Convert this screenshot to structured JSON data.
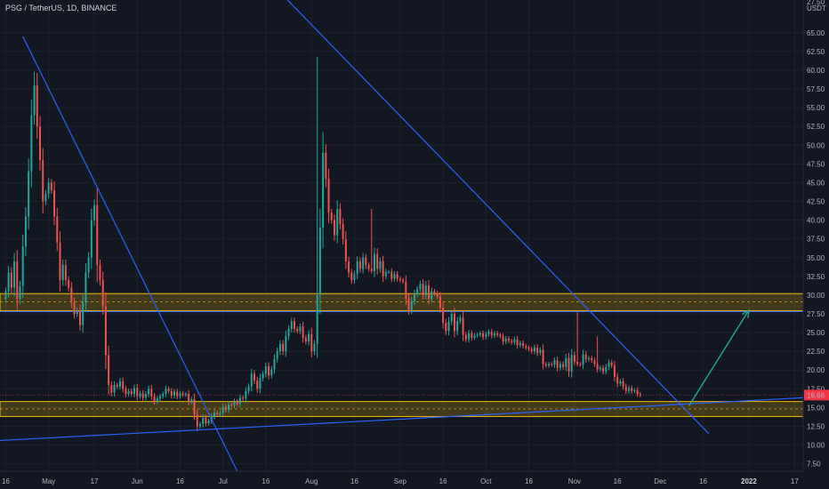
{
  "header": {
    "symbol_title": "PSG / TetherUS, 1D, BINANCE"
  },
  "axis": {
    "currency_line1": "27.50",
    "currency_line2": "USDT"
  },
  "price_tag": {
    "value": "16.66",
    "color": "#f23645"
  },
  "colors": {
    "background": "#131722",
    "up": "#26a69a",
    "down": "#ef5350",
    "zone": "#f0b90b",
    "trendline": "#2962ff",
    "arrow": "#26a69a"
  },
  "chart_data": {
    "type": "candlestick",
    "y_ticks": [
      65,
      62.5,
      60,
      57.5,
      55,
      52.5,
      50,
      47.5,
      45,
      42.5,
      40,
      37.5,
      35,
      32.5,
      30,
      27.5,
      25,
      22.5,
      20,
      17.5,
      15,
      12.5,
      10,
      7.5
    ],
    "y_tick_labels": [
      "65.00",
      "62.50",
      "60.00",
      "57.50",
      "55.00",
      "52.50",
      "50.00",
      "47.50",
      "45.00",
      "42.50",
      "40.00",
      "37.50",
      "35.00",
      "32.50",
      "30.00",
      "27.50",
      "25.00",
      "22.50",
      "20.00",
      "17.50",
      "15.00",
      "12.50",
      "10.00",
      "7.50"
    ],
    "ylim": [
      6.5,
      67
    ],
    "x_ticks": [
      {
        "label": "16",
        "day": 0
      },
      {
        "label": "May",
        "day": 15
      },
      {
        "label": "17",
        "day": 31
      },
      {
        "label": "Jun",
        "day": 46
      },
      {
        "label": "16",
        "day": 61
      },
      {
        "label": "Jul",
        "day": 76
      },
      {
        "label": "16",
        "day": 91
      },
      {
        "label": "Aug",
        "day": 107
      },
      {
        "label": "16",
        "day": 122
      },
      {
        "label": "Sep",
        "day": 138
      },
      {
        "label": "16",
        "day": 153
      },
      {
        "label": "Oct",
        "day": 168
      },
      {
        "label": "16",
        "day": 183
      },
      {
        "label": "Nov",
        "day": 199
      },
      {
        "label": "16",
        "day": 214
      },
      {
        "label": "Dec",
        "day": 229
      },
      {
        "label": "16",
        "day": 244
      },
      {
        "label": "2022",
        "day": 260
      },
      {
        "label": "17",
        "day": 276
      }
    ],
    "xlim_days": [
      -2,
      279
    ],
    "zones": [
      {
        "top": 30.2,
        "bottom": 27.9,
        "mid": 29.1
      },
      {
        "top": 15.8,
        "bottom": 13.8,
        "mid": 14.8
      }
    ],
    "hline": 27.8,
    "current_price": 16.66,
    "trendlines": [
      {
        "d1": 6,
        "p1": 64.5,
        "d2": 81,
        "p2": 6.5
      },
      {
        "d1": 97,
        "p1": 70,
        "d2": 246,
        "p2": 11.5
      },
      {
        "d1": -2,
        "p1": 10.6,
        "d2": 279,
        "p2": 16.3
      }
    ],
    "projection_arrow": {
      "d1": 239,
      "p1": 15.2,
      "d2": 260,
      "p2": 28.0
    },
    "candles_close": [
      30.5,
      33,
      31,
      34.5,
      29.5,
      31.2,
      36.5,
      40.5,
      46.5,
      54,
      58,
      52.5,
      48,
      42.5,
      43.5,
      45,
      44,
      40.5,
      37,
      32,
      34,
      32,
      31,
      29,
      27.5,
      28,
      26,
      29,
      33,
      35,
      40,
      42,
      34,
      32,
      28.5,
      22,
      18,
      17,
      18,
      17.8,
      18.5,
      17.5,
      16.8,
      17.2,
      16.8,
      17.6,
      16.5,
      16.9,
      16.3,
      16.8,
      17.5,
      16.5,
      15.8,
      16.2,
      16.5,
      16.8,
      17.5,
      17.2,
      16.6,
      17.1,
      16.5,
      16.9,
      16.7,
      16.8,
      15.8,
      16.1,
      14.1,
      12.5,
      12.8,
      13.6,
      12.9,
      13.2,
      13.8,
      14.3,
      14.1,
      14.3,
      15.1,
      14.7,
      15.4,
      15.3,
      15.8,
      15.5,
      16.3,
      16.2,
      17.2,
      17.8,
      19.5,
      18.6,
      17.5,
      18.9,
      19.5,
      20.5,
      19.3,
      20.1,
      21.5,
      22.5,
      23.5,
      22.5,
      24.5,
      25.5,
      26.5,
      25.5,
      25.2,
      25.8,
      24.3,
      23.8,
      24.8,
      22.5,
      23.5,
      30,
      39,
      49,
      45.5,
      41,
      40,
      38,
      41.5,
      39.5,
      37.5,
      34.5,
      33,
      32,
      32.8,
      34.5,
      33.5,
      35,
      34,
      33.5,
      33.2,
      35.5,
      33.5,
      34.5,
      32.5,
      33.1,
      33.1,
      32.2,
      32.8,
      32.2,
      32,
      31.8,
      29.5,
      28,
      29.2,
      30.2,
      30.8,
      31.5,
      30,
      31.3,
      29.5,
      30.5,
      30.2,
      29.8,
      28.3,
      26.3,
      25.2,
      26.5,
      27.5,
      25.2,
      26.5,
      27,
      24.7,
      24.1,
      24.9,
      24.3,
      24.6,
      24.7,
      24.9,
      24.4,
      24.8,
      25.1,
      24.6,
      24.9,
      24.7,
      24.5,
      23.8,
      24.2,
      23.9,
      23.7,
      24.1,
      23.3,
      23.6,
      23.2,
      23,
      22.8,
      22.5,
      23,
      22.3,
      22.7,
      20.8,
      20.6,
      20.8,
      20.7,
      21.3,
      20.3,
      20.8,
      20.4,
      21.6,
      19.8,
      22,
      21.1,
      20.8,
      20.7,
      22.1,
      21.4,
      21.6,
      21.3,
      20.8,
      20.1,
      20.3,
      19.8,
      20.4,
      21,
      20.6,
      19.1,
      18.2,
      18.5,
      17.8,
      17.2,
      17.6,
      17.2,
      17.3,
      16.8,
      16.66
    ],
    "spike_wicks": [
      {
        "day": 10,
        "high": 59.8
      },
      {
        "day": 109,
        "high": 61.8
      },
      {
        "day": 128,
        "high": 41.5
      },
      {
        "day": 200,
        "high": 27.7
      },
      {
        "day": 207,
        "high": 24.5
      }
    ]
  }
}
